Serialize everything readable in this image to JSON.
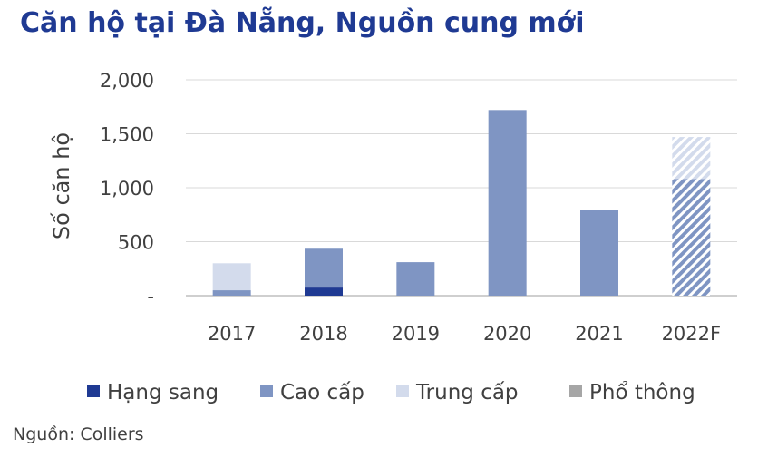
{
  "title": "Căn hộ tại Đà Nẵng, Nguồn cung mới",
  "source": "Nguồn: Colliers",
  "chart_data": {
    "type": "bar",
    "stacked": true,
    "title": "Căn hộ tại Đà Nẵng, Nguồn cung mới",
    "xlabel": "",
    "ylabel": "Số căn hộ",
    "ylim": [
      0,
      2000
    ],
    "yticks": [
      0,
      500,
      1000,
      1500,
      2000
    ],
    "ytick_labels": [
      "-",
      "500",
      "1,000",
      "1,500",
      "2,000"
    ],
    "grid": true,
    "legend_position": "bottom",
    "categories": [
      "2017",
      "2018",
      "2019",
      "2020",
      "2021",
      "2022F"
    ],
    "forecast_categories": [
      "2022F"
    ],
    "series": [
      {
        "name": "Hạng sang",
        "color": "#1f3a93",
        "values": [
          0,
          75,
          0,
          0,
          0,
          0
        ]
      },
      {
        "name": "Cao cấp",
        "color": "#7f95c3",
        "values": [
          50,
          360,
          310,
          1720,
          790,
          1080
        ]
      },
      {
        "name": "Trung cấp",
        "color": "#d3dbec",
        "values": [
          250,
          0,
          0,
          0,
          0,
          390
        ]
      },
      {
        "name": "Phổ thông",
        "color": "#a6a6a6",
        "values": [
          0,
          0,
          0,
          0,
          0,
          0
        ]
      }
    ]
  }
}
